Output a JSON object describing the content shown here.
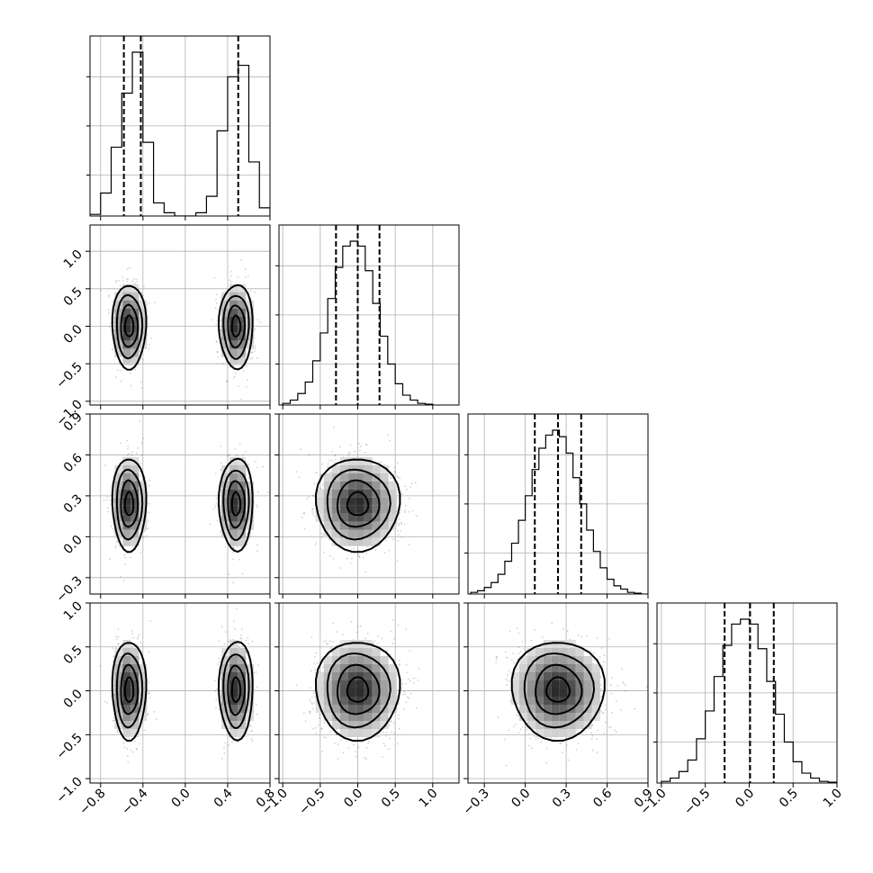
{
  "chart_data": {
    "type": "corner",
    "grid": true,
    "axes": [
      {
        "range": [
          -0.9,
          0.8
        ],
        "ticks": [
          -0.8,
          -0.4,
          0.0,
          0.4,
          0.8
        ],
        "tick_labels": [
          "−0.8",
          "−0.4",
          "0.0",
          "0.4",
          "0.8"
        ],
        "quantiles": [
          -0.58,
          -0.42,
          0.5
        ],
        "hist_bins": [
          -0.9,
          -0.8,
          -0.7,
          -0.6,
          -0.5,
          -0.4,
          -0.3,
          -0.2,
          -0.1,
          0.0,
          0.1,
          0.2,
          0.3,
          0.4,
          0.5,
          0.6,
          0.7,
          0.8
        ],
        "hist_counts": [
          0.01,
          0.14,
          0.42,
          0.75,
          1.0,
          0.45,
          0.08,
          0.02,
          0.0,
          0.0,
          0.02,
          0.12,
          0.52,
          0.85,
          0.92,
          0.33,
          0.05
        ],
        "modes": [
          {
            "center": -0.53,
            "sigma": 0.08
          },
          {
            "center": 0.48,
            "sigma": 0.08
          }
        ]
      },
      {
        "range": [
          -1.05,
          1.35
        ],
        "ticks": [
          -1.0,
          -0.5,
          0.0,
          0.5,
          1.0
        ],
        "tick_labels": [
          "−1.0",
          "−0.5",
          "0.0",
          "0.5",
          "1.0"
        ],
        "quantiles": [
          -0.29,
          0.0,
          0.29
        ],
        "hist_bins": [
          -1.0,
          -0.9,
          -0.8,
          -0.7,
          -0.6,
          -0.5,
          -0.4,
          -0.3,
          -0.2,
          -0.1,
          0.0,
          0.1,
          0.2,
          0.3,
          0.4,
          0.5,
          0.6,
          0.7,
          0.8,
          0.9,
          1.0
        ],
        "hist_counts": [
          0.01,
          0.03,
          0.07,
          0.14,
          0.27,
          0.44,
          0.65,
          0.84,
          0.97,
          1.0,
          0.97,
          0.82,
          0.62,
          0.42,
          0.25,
          0.13,
          0.06,
          0.03,
          0.01,
          0.005
        ],
        "modes": [
          {
            "center": 0.0,
            "sigma": 0.28
          }
        ]
      },
      {
        "range": [
          -0.42,
          0.9
        ],
        "ticks": [
          -0.3,
          0.0,
          0.3,
          0.6,
          0.9
        ],
        "tick_labels": [
          "−0.3",
          "0.0",
          "0.3",
          "0.6",
          "0.9"
        ],
        "quantiles": [
          0.07,
          0.24,
          0.41
        ],
        "hist_bins": [
          -0.4,
          -0.35,
          -0.3,
          -0.25,
          -0.2,
          -0.15,
          -0.1,
          -0.05,
          0.0,
          0.05,
          0.1,
          0.15,
          0.2,
          0.25,
          0.3,
          0.35,
          0.4,
          0.45,
          0.5,
          0.55,
          0.6,
          0.65,
          0.7,
          0.75,
          0.8,
          0.85
        ],
        "hist_counts": [
          0.01,
          0.02,
          0.04,
          0.07,
          0.12,
          0.2,
          0.31,
          0.45,
          0.6,
          0.76,
          0.89,
          0.97,
          1.0,
          0.96,
          0.86,
          0.71,
          0.55,
          0.39,
          0.26,
          0.16,
          0.09,
          0.05,
          0.03,
          0.01,
          0.005
        ],
        "modes": [
          {
            "center": 0.24,
            "sigma": 0.17
          }
        ]
      },
      {
        "range": [
          -1.05,
          1.0
        ],
        "ticks": [
          -1.0,
          -0.5,
          0.0,
          0.5,
          1.0
        ],
        "tick_labels": [
          "−1.0",
          "−0.5",
          "0.0",
          "0.5",
          "1.0"
        ],
        "quantiles": [
          -0.28,
          0.01,
          0.28
        ],
        "hist_bins": [
          -1.0,
          -0.9,
          -0.8,
          -0.7,
          -0.6,
          -0.5,
          -0.4,
          -0.3,
          -0.2,
          -0.1,
          0.0,
          0.1,
          0.2,
          0.3,
          0.4,
          0.5,
          0.6,
          0.7,
          0.8,
          0.9,
          1.0
        ],
        "hist_counts": [
          0.01,
          0.03,
          0.07,
          0.14,
          0.27,
          0.44,
          0.65,
          0.84,
          0.97,
          1.0,
          0.97,
          0.82,
          0.62,
          0.42,
          0.25,
          0.13,
          0.06,
          0.03,
          0.01,
          0.005
        ],
        "modes": [
          {
            "center": 0.01,
            "sigma": 0.28
          }
        ]
      }
    ]
  }
}
